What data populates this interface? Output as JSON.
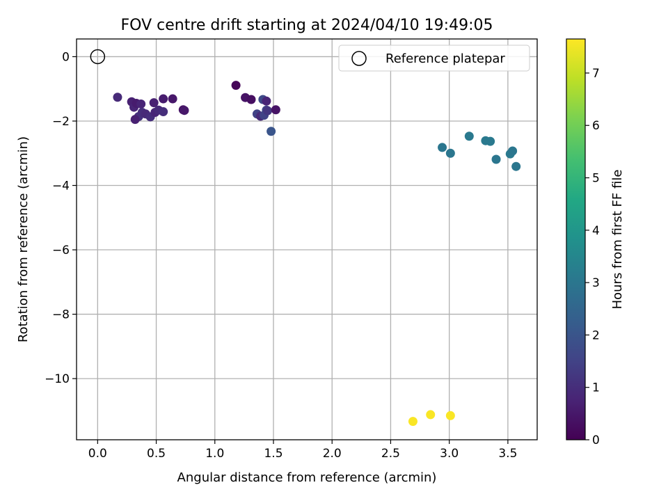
{
  "chart_data": {
    "type": "scatter",
    "title": "FOV centre drift starting at 2024/04/10 19:49:05",
    "xlabel": "Angular distance from reference (arcmin)",
    "ylabel": "Rotation from reference (arcmin)",
    "xlim": [
      -0.18,
      3.75
    ],
    "ylim": [
      -11.9,
      0.55
    ],
    "xticks": [
      0.0,
      0.5,
      1.0,
      1.5,
      2.0,
      2.5,
      3.0,
      3.5
    ],
    "xtick_labels": [
      "0.0",
      "0.5",
      "1.0",
      "1.5",
      "2.0",
      "2.5",
      "3.0",
      "3.5"
    ],
    "yticks": [
      0,
      -2,
      -4,
      -6,
      -8,
      -10
    ],
    "ytick_labels": [
      "0",
      "−2",
      "−4",
      "−6",
      "−8",
      "−10"
    ],
    "grid": true,
    "legend": {
      "placement": "top-right",
      "entries": [
        "Reference platepar"
      ]
    },
    "reference_point": {
      "x": 0.0,
      "y": 0.0
    },
    "colorbar": {
      "label": "Hours from first FF file",
      "colormap": "viridis",
      "range": [
        0,
        7.65
      ],
      "ticks": [
        0,
        1,
        2,
        3,
        4,
        5,
        6,
        7
      ],
      "tick_labels": [
        "0",
        "1",
        "2",
        "3",
        "4",
        "5",
        "6",
        "7"
      ]
    },
    "series": [
      {
        "x": [
          0.17,
          0.29,
          0.31,
          0.33,
          0.35,
          0.37,
          0.38,
          0.32,
          0.41,
          0.45,
          0.48,
          0.49,
          0.52,
          0.56,
          0.56,
          0.64,
          0.73,
          0.74,
          1.18,
          1.26,
          1.31,
          1.36,
          1.39,
          1.41,
          1.42,
          1.44,
          1.44,
          1.45,
          1.48,
          1.52,
          2.94,
          3.01,
          3.17,
          3.31,
          3.35,
          3.4,
          3.52,
          3.54,
          3.57,
          2.69,
          2.84,
          3.01
        ],
        "y": [
          -1.26,
          -1.4,
          -1.57,
          -1.45,
          -1.86,
          -1.47,
          -1.73,
          -1.95,
          -1.78,
          -1.87,
          -1.43,
          -1.73,
          -1.66,
          -1.31,
          -1.71,
          -1.31,
          -1.65,
          -1.67,
          -0.89,
          -1.27,
          -1.33,
          -1.78,
          -1.85,
          -1.33,
          -1.82,
          -1.66,
          -1.38,
          -1.68,
          -2.32,
          -1.65,
          -2.82,
          -3.0,
          -2.47,
          -2.61,
          -2.63,
          -3.19,
          -3.02,
          -2.93,
          -3.41,
          -11.33,
          -11.12,
          -11.15
        ],
        "hours": [
          0.9,
          0.7,
          0.8,
          0.6,
          1.1,
          0.8,
          1.0,
          0.7,
          0.9,
          1.0,
          0.7,
          0.8,
          0.9,
          0.6,
          1.0,
          0.5,
          0.4,
          0.5,
          0.1,
          0.4,
          0.3,
          1.5,
          0.9,
          1.7,
          1.5,
          1.6,
          0.8,
          1.2,
          2.0,
          0.4,
          3.0,
          3.0,
          3.1,
          3.1,
          3.1,
          3.0,
          3.1,
          3.0,
          3.0,
          7.6,
          7.6,
          7.6
        ]
      }
    ]
  }
}
